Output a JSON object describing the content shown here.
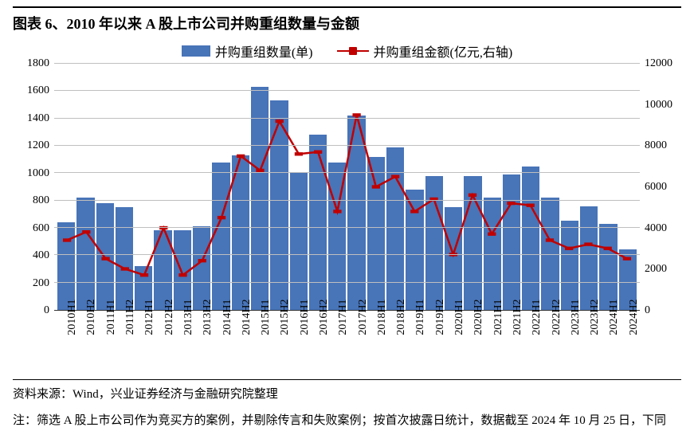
{
  "title": "图表 6、2010 年以来 A 股上市公司并购重组数量与金额",
  "source": "资料来源：Wind，兴业证券经济与金融研究院整理",
  "note": "注：筛选 A 股上市公司作为竞买方的案例，并剔除传言和失败案例；按首次披露日统计，数据截至 2024 年 10 月 25 日，下同",
  "legend": {
    "bar_label": "并购重组数量(单)",
    "line_label": "并购重组金额(亿元,右轴)"
  },
  "chart": {
    "type": "bar-line",
    "categories": [
      "2010H1",
      "2010H2",
      "2011H1",
      "2011H2",
      "2012H1",
      "2012H2",
      "2013H1",
      "2013H2",
      "2014H1",
      "2014H2",
      "2015H1",
      "2015H2",
      "2016H1",
      "2016H2",
      "2017H1",
      "2017H2",
      "2018H1",
      "2018H2",
      "2019H1",
      "2019H2",
      "2020H1",
      "2020H2",
      "2021H1",
      "2021H2",
      "2022H1",
      "2022H2",
      "2023H1",
      "2023H2",
      "2024H1",
      "2024H2"
    ],
    "bar_values": [
      640,
      820,
      780,
      750,
      320,
      580,
      580,
      610,
      1080,
      1130,
      1630,
      1530,
      1010,
      1280,
      1080,
      1420,
      1120,
      1190,
      880,
      980,
      750,
      980,
      820,
      990,
      1050,
      820,
      650,
      760,
      630,
      440
    ],
    "line_values": [
      3400,
      3800,
      2500,
      2000,
      1700,
      4000,
      1700,
      2400,
      4500,
      7500,
      6800,
      9200,
      7600,
      7700,
      4800,
      9500,
      6000,
      6500,
      4800,
      5400,
      2700,
      5600,
      3700,
      5200,
      5100,
      3400,
      3000,
      3200,
      3000,
      2500
    ],
    "left_axis": {
      "min": 0,
      "max": 1800,
      "step": 200
    },
    "right_axis": {
      "min": 0,
      "max": 12000,
      "step": 2000
    },
    "bar_color": "#4874b8",
    "line_color": "#c00000",
    "marker_color": "#c00000",
    "grid_color": "#bfbfbf",
    "background_color": "#ffffff",
    "title_fontsize": 18,
    "axis_fontsize": 14,
    "marker_size": 5,
    "line_width": 2.5,
    "bar_gap": 2
  }
}
